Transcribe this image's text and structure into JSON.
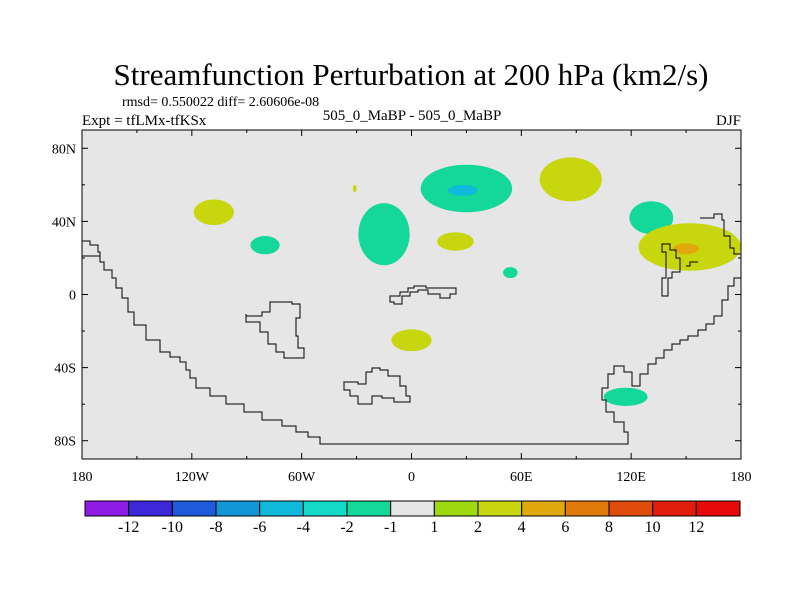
{
  "chart_data": {
    "type": "heatmap",
    "title": "Streamfunction Perturbation at 200 hPa (km2/s)",
    "stats_text": "rmsd= 0.550022 diff= 2.60606e-08",
    "expt_text": "Expt = tfLMx-tfKSx",
    "subtitle": "505_0_MaBP - 505_0_MaBP",
    "season": "DJF",
    "x_ticks": [
      {
        "value": -180,
        "label": "180"
      },
      {
        "value": -120,
        "label": "120W"
      },
      {
        "value": -60,
        "label": "60W"
      },
      {
        "value": 0,
        "label": "0"
      },
      {
        "value": 60,
        "label": "60E"
      },
      {
        "value": 120,
        "label": "120E"
      },
      {
        "value": 180,
        "label": "180"
      }
    ],
    "y_ticks": [
      {
        "value": 80,
        "label": "80N"
      },
      {
        "value": 40,
        "label": "40N"
      },
      {
        "value": 0,
        "label": "0"
      },
      {
        "value": -40,
        "label": "40S"
      },
      {
        "value": -80,
        "label": "80S"
      }
    ],
    "xlim": [
      -180,
      180
    ],
    "ylim": [
      -90,
      90
    ],
    "background_color": "#e6e6e6",
    "colorbar": {
      "levels": [
        "-12",
        "-10",
        "-8",
        "-6",
        "-4",
        "-2",
        "-1",
        "1",
        "2",
        "4",
        "6",
        "8",
        "10",
        "12"
      ],
      "colors": [
        "#8f1ce6",
        "#3c28d8",
        "#1d5bdc",
        "#1296d8",
        "#0eb9dc",
        "#12d9c8",
        "#14d79a",
        "#e6e6e6",
        "#9ed90f",
        "#c8d60e",
        "#e0a80b",
        "#e07a0b",
        "#e04c0b",
        "#e01e0b",
        "#e60a0a"
      ]
    },
    "anomalies": [
      {
        "lon": -108,
        "lat": 45,
        "rlon": 11,
        "rlat": 7,
        "value": 2
      },
      {
        "lon": -80,
        "lat": 27,
        "rlon": 8,
        "rlat": 5,
        "value": -1.5
      },
      {
        "lon": -31,
        "lat": 58,
        "rlon": 1,
        "rlat": 2,
        "value": 2
      },
      {
        "lon": -15,
        "lat": 33,
        "rlon": 14,
        "rlat": 17,
        "value": -1.5
      },
      {
        "lon": 30,
        "lat": 58,
        "rlon": 25,
        "rlat": 13,
        "value": -2
      },
      {
        "lon": 28,
        "lat": 57,
        "rlon": 8,
        "rlat": 3,
        "value": -5
      },
      {
        "lon": 24,
        "lat": 29,
        "rlon": 10,
        "rlat": 5,
        "value": 2
      },
      {
        "lon": 54,
        "lat": 12,
        "rlon": 4,
        "rlat": 3,
        "value": -1.5
      },
      {
        "lon": 87,
        "lat": 63,
        "rlon": 17,
        "rlat": 12,
        "value": 2
      },
      {
        "lon": 131,
        "lat": 42,
        "rlon": 12,
        "rlat": 9,
        "value": -1.5
      },
      {
        "lon": 152,
        "lat": 26,
        "rlon": 28,
        "rlat": 13,
        "value": 2
      },
      {
        "lon": 150,
        "lat": 25,
        "rlon": 7,
        "rlat": 3,
        "value": 5
      },
      {
        "lon": 0,
        "lat": -25,
        "rlon": 11,
        "rlat": 6,
        "value": 2
      },
      {
        "lon": 117,
        "lat": -56,
        "rlon": 12,
        "rlat": 5,
        "value": -1.5
      }
    ]
  }
}
